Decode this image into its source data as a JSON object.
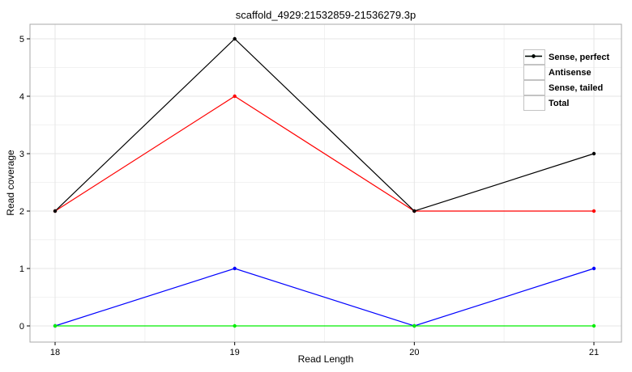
{
  "title": "scaffold_4929:21532859-21536279.3p",
  "chart_data": {
    "type": "line",
    "x": [
      18,
      19,
      20,
      21
    ],
    "series": [
      {
        "name": "Sense, perfect",
        "color": "#ff0000",
        "values": [
          2,
          4,
          2,
          2
        ]
      },
      {
        "name": "Antisense",
        "color": "#0000ff",
        "values": [
          0,
          1,
          0,
          1
        ]
      },
      {
        "name": "Sense, tailed",
        "color": "#00ee00",
        "values": [
          0,
          0,
          0,
          0
        ]
      },
      {
        "name": "Total",
        "color": "#000000",
        "values": [
          2,
          5,
          2,
          3
        ]
      }
    ],
    "xlabel": "Read Length",
    "ylabel": "Read coverage",
    "xlim": [
      18,
      21
    ],
    "ylim": [
      0,
      5
    ],
    "xticks": [
      18,
      19,
      20,
      21
    ],
    "yticks": [
      0,
      1,
      2,
      3,
      4,
      5
    ],
    "x_minor_gridlines": [
      18.5,
      19.5,
      20.5
    ],
    "y_minor_gridlines": [
      0.5,
      1.5,
      2.5,
      3.5,
      4.5
    ],
    "grid": "major+minor",
    "legend_position": "top-right-inside",
    "panel_border_color": "#a9a9a9",
    "major_grid_color": "#e5e5e5",
    "minor_grid_color": "#f2f2f2"
  }
}
